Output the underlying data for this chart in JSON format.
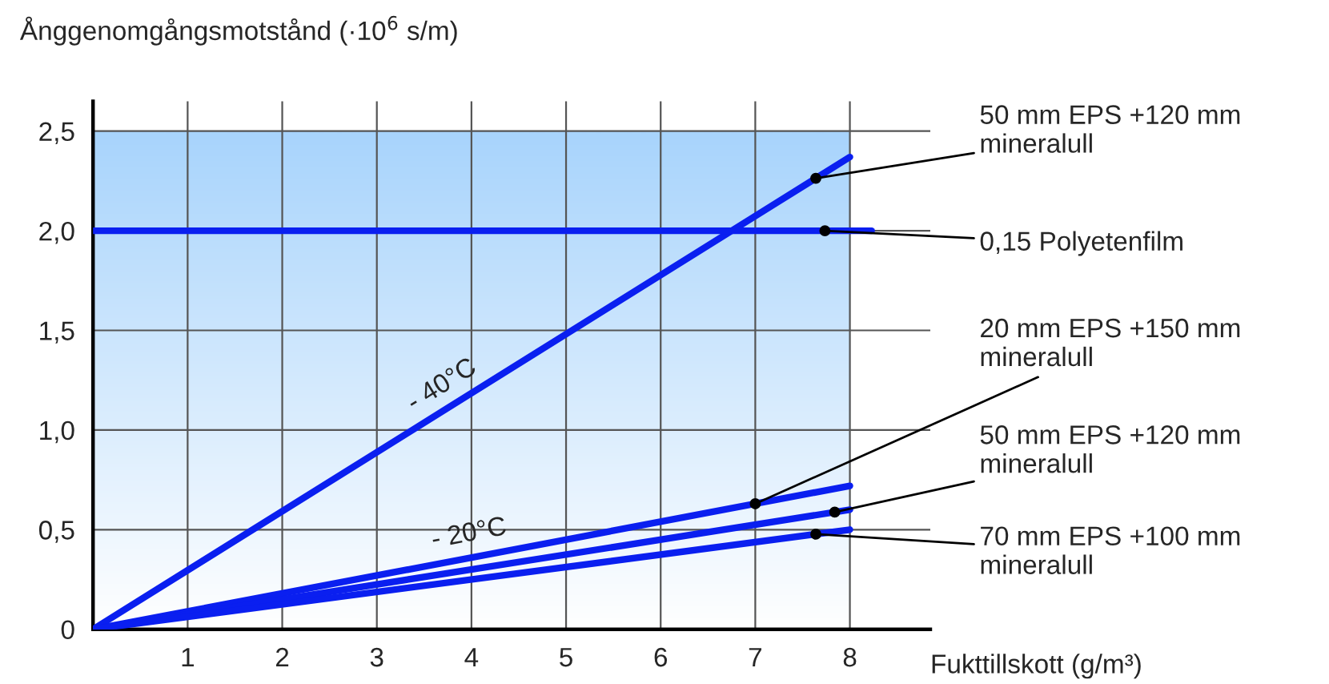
{
  "chart_data": {
    "type": "line",
    "xlabel": "Fukttillskott (g/m³)",
    "ylabel": "Ånggenomgångsmotstånd (·10$^{6}$ s/m)",
    "series": [
      {
        "name": "50 mm EPS +120 mm mineralull",
        "color": "#0a1ff0",
        "x": [
          0,
          8
        ],
        "values": [
          0,
          2.37
        ]
      },
      {
        "name": "0,15 Polyetenfilm",
        "color": "#0a1ff0",
        "x": [
          0,
          8.23
        ],
        "values": [
          2.0,
          2.0
        ]
      },
      {
        "name": "20 mm EPS +150 mm mineralull",
        "color": "#0a1ff0",
        "x": [
          0,
          8
        ],
        "values": [
          0,
          0.72
        ]
      },
      {
        "name": "50 mm EPS +120 mm mineralull",
        "color": "#0a1ff0",
        "x": [
          0,
          8
        ],
        "values": [
          0,
          0.6
        ]
      },
      {
        "name": "70 mm EPS +100 mm mineralull",
        "color": "#0a1ff0",
        "x": [
          0,
          8
        ],
        "values": [
          0,
          0.5
        ]
      }
    ],
    "annotations": [
      "- 40°C",
      "- 20°C"
    ],
    "bands": [
      {
        "axis": "y",
        "from": 0,
        "to": 2.5,
        "color": "#a8d4fc"
      }
    ],
    "xlim": [
      0,
      8.85
    ],
    "ylim": [
      0,
      2.65
    ],
    "xticks": [
      1,
      2,
      3,
      4,
      5,
      6,
      7,
      8
    ],
    "yticks": [
      0,
      {
        "value": 0.5,
        "label": "0,5"
      },
      {
        "value": 1.0,
        "label": "1,0"
      },
      {
        "value": 1.5,
        "label": "1,5"
      },
      {
        "value": 2.0,
        "label": "2,0"
      },
      {
        "value": 2.5,
        "label": "2,5"
      }
    ],
    "grid": true,
    "legend": false,
    "marker": "none",
    "line_style": "solid"
  }
}
